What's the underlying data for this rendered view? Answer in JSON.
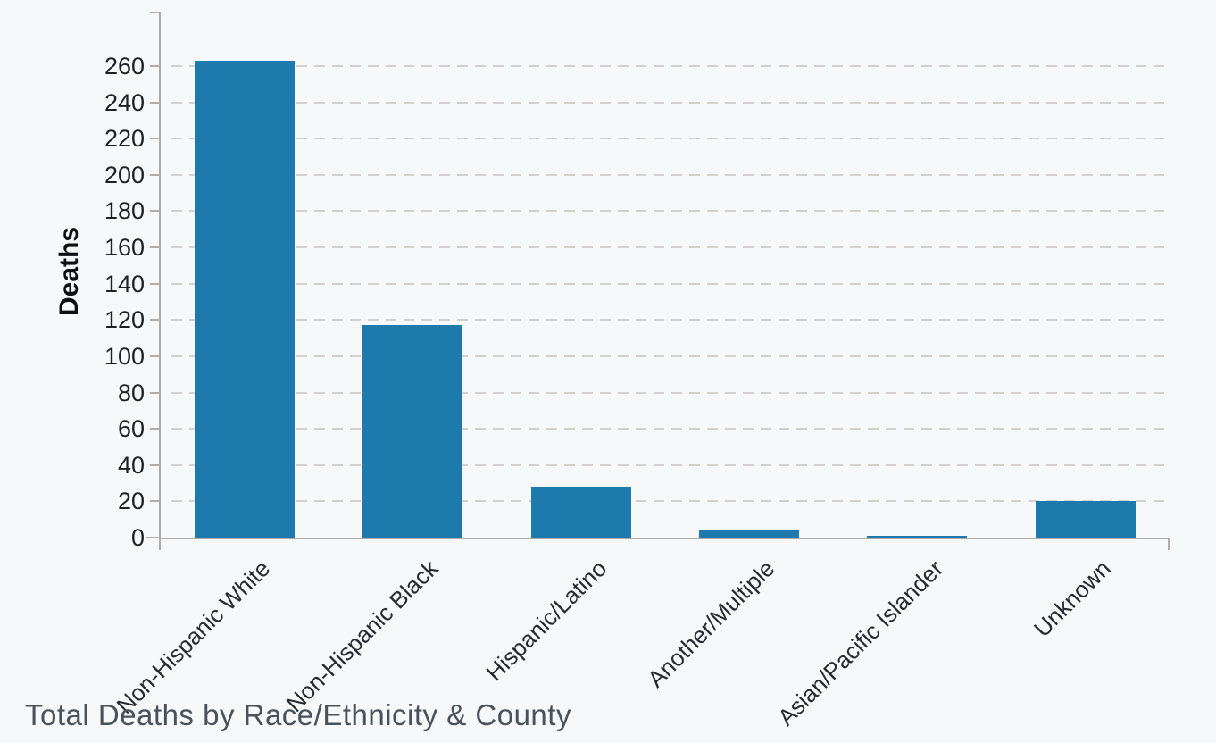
{
  "chart_data": {
    "type": "bar",
    "title": "Total Deaths by Race/Ethnicity & County",
    "xlabel": "",
    "ylabel": "Deaths",
    "categories": [
      "Non-Hispanic White",
      "Non-Hispanic Black",
      "Hispanic/Latino",
      "Another/Multiple",
      "Asian/Pacific Islander",
      "Unknown"
    ],
    "values": [
      263,
      117,
      28,
      4,
      1,
      20
    ],
    "yticks": [
      0,
      20,
      40,
      60,
      80,
      100,
      120,
      140,
      160,
      180,
      200,
      220,
      240,
      260
    ],
    "ylim": [
      0,
      292
    ],
    "grid": "horizontal-dashed",
    "legend_position": "none",
    "bar_color": "#1e79ad"
  },
  "colors": {
    "background": "#f6f8f9",
    "axis": "#b2aba6",
    "gridline": "#d4d1cd",
    "tick_text": "#1d2126",
    "category_text": "#272b31",
    "title_text": "#49525c",
    "bar": "#1e79ad"
  }
}
